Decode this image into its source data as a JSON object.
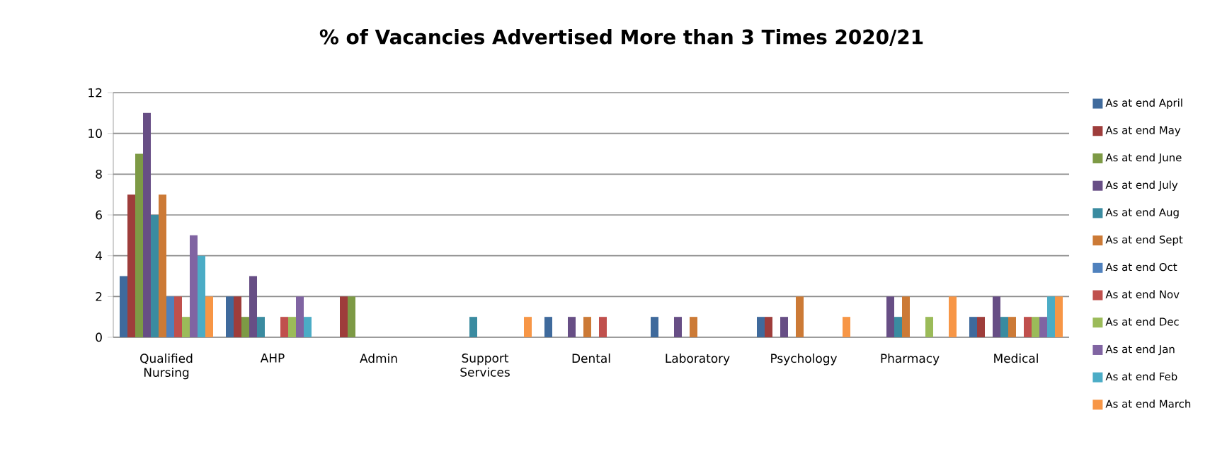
{
  "chart_data": {
    "type": "bar",
    "title": "% of Vacancies Advertised More than 3 Times 2020/21",
    "categories": [
      "Qualified Nursing",
      "AHP",
      "Admin",
      "Support Services",
      "Dental",
      "Laboratory",
      "Psychology",
      "Pharmacy",
      "Medical"
    ],
    "series": [
      {
        "name": "As at end April",
        "color": "#3f6a9c",
        "values": [
          3,
          2,
          0,
          0,
          1,
          1,
          1,
          0,
          1
        ]
      },
      {
        "name": "As at end May",
        "color": "#9e3d3b",
        "values": [
          7,
          2,
          2,
          0,
          0,
          0,
          1,
          0,
          1
        ]
      },
      {
        "name": "As at end June",
        "color": "#7d9a45",
        "values": [
          9,
          1,
          2,
          0,
          0,
          0,
          0,
          0,
          0
        ]
      },
      {
        "name": "As at end July",
        "color": "#674e85",
        "values": [
          11,
          3,
          0,
          0,
          1,
          1,
          1,
          2,
          2
        ]
      },
      {
        "name": "As at end Aug",
        "color": "#3a8ba0",
        "values": [
          6,
          1,
          0,
          1,
          0,
          0,
          0,
          1,
          1
        ]
      },
      {
        "name": "As at end Sept",
        "color": "#cc7a36",
        "values": [
          7,
          0,
          0,
          0,
          1,
          1,
          2,
          2,
          1
        ]
      },
      {
        "name": "As at end Oct",
        "color": "#4f81bd",
        "values": [
          2,
          0,
          0,
          0,
          0,
          0,
          0,
          0,
          0
        ]
      },
      {
        "name": "As at end Nov",
        "color": "#c0504d",
        "values": [
          2,
          1,
          0,
          0,
          1,
          0,
          0,
          0,
          1
        ]
      },
      {
        "name": "As at end Dec",
        "color": "#9bbb59",
        "values": [
          1,
          1,
          0,
          0,
          0,
          0,
          0,
          1,
          1
        ]
      },
      {
        "name": "As at end Jan",
        "color": "#8064a2",
        "values": [
          5,
          2,
          0,
          0,
          0,
          0,
          0,
          0,
          1
        ]
      },
      {
        "name": "As at end Feb",
        "color": "#4bacc6",
        "values": [
          4,
          1,
          0,
          0,
          0,
          0,
          0,
          0,
          2
        ]
      },
      {
        "name": "As at end March",
        "color": "#f79646",
        "values": [
          2,
          0,
          0,
          1,
          0,
          0,
          1,
          2,
          2
        ]
      }
    ],
    "ylim": [
      0,
      12
    ],
    "yticks": [
      0,
      2,
      4,
      6,
      8,
      10,
      12
    ],
    "grid": "y",
    "legend": "right"
  }
}
